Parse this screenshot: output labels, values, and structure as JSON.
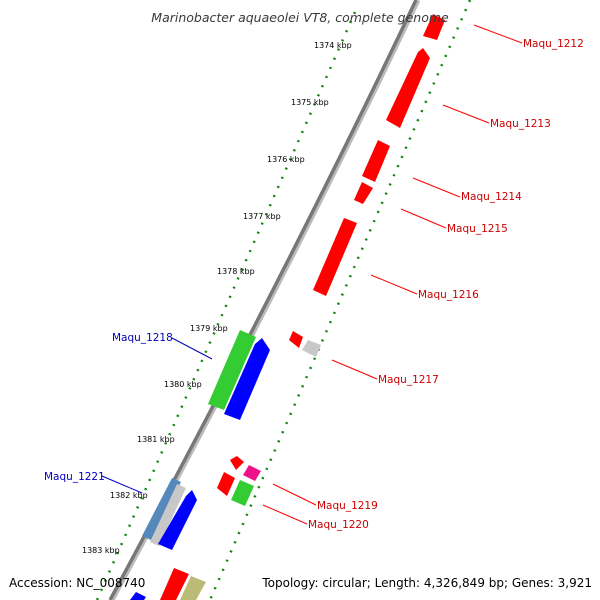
{
  "title": "Marinobacter aquaeolei VT8, complete genome",
  "footer": {
    "accession": "Accession: NC_008740",
    "topology": "Topology: circular; Length: 4,326,849 bp; Genes: 3,921"
  },
  "ticks": [
    "1374 kbp",
    "1375 kbp",
    "1376 kbp",
    "1377 kbp",
    "1378 kbp",
    "1379 kbp",
    "1380 kbp",
    "1381 kbp",
    "1382 kbp",
    "1383 kbp"
  ],
  "labels": {
    "forward": [
      "Maqu_1212",
      "Maqu_1213",
      "Maqu_1214",
      "Maqu_1215",
      "Maqu_1216",
      "Maqu_1217",
      "Maqu_1219",
      "Maqu_1220"
    ],
    "reverse": [
      "Maqu_1218",
      "Maqu_1221"
    ]
  },
  "colors": {
    "cds": "#ff0000",
    "gene": "#0000ff",
    "rna": "#33cc33",
    "misc": "#c8c8c8",
    "pseudo": "#ee1188",
    "other": "#bbbb77",
    "reg": "#5588bb",
    "forward_label": "#cc0000",
    "reverse_label": "#0000bb",
    "backbone": "#777777",
    "tickmark": "#118811"
  },
  "features": [
    {
      "name": "cds-1212",
      "strand": "forward",
      "type": "cds"
    },
    {
      "name": "cds-1213",
      "strand": "forward",
      "type": "cds"
    },
    {
      "name": "cds-1214",
      "strand": "forward",
      "type": "cds"
    },
    {
      "name": "cds-1215",
      "strand": "forward",
      "type": "cds"
    },
    {
      "name": "cds-1216",
      "strand": "forward",
      "type": "cds"
    },
    {
      "name": "cds-1217",
      "strand": "forward",
      "type": "cds"
    },
    {
      "name": "misc-1217",
      "strand": "forward",
      "type": "misc"
    },
    {
      "name": "gene-1218",
      "strand": "reverse",
      "type": "gene"
    },
    {
      "name": "rna-1218",
      "strand": "reverse",
      "type": "rna"
    },
    {
      "name": "cds-1219a",
      "strand": "forward",
      "type": "cds"
    },
    {
      "name": "cds-1219b",
      "strand": "forward",
      "type": "cds"
    },
    {
      "name": "pseudo-1219",
      "strand": "forward",
      "type": "pseudo"
    },
    {
      "name": "rna-1220",
      "strand": "forward",
      "type": "rna"
    },
    {
      "name": "reg-1221",
      "strand": "reverse",
      "type": "reg"
    },
    {
      "name": "misc-1221",
      "strand": "reverse",
      "type": "misc"
    },
    {
      "name": "gene-1221",
      "strand": "reverse",
      "type": "gene"
    },
    {
      "name": "cds-bottom",
      "strand": "forward",
      "type": "cds"
    },
    {
      "name": "other-bottom",
      "strand": "forward",
      "type": "other"
    },
    {
      "name": "gene-bottom",
      "strand": "reverse",
      "type": "gene"
    }
  ]
}
